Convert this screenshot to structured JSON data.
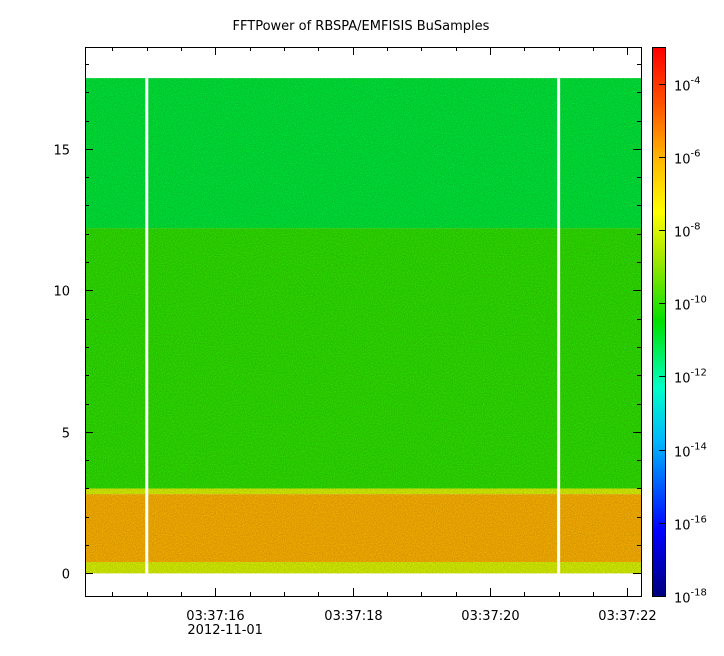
{
  "chart_data": {
    "type": "heatmap",
    "title": "FFTPower of RBSPA/EMFISIS  BuSamples",
    "x_axis": {
      "range": [
        "03:37:14.1",
        "03:37:22.2"
      ],
      "ticks": [
        "03:37:16",
        "03:37:18",
        "03:37:20",
        "03:37:22"
      ],
      "date_label": "2012-11-01"
    },
    "y_axis": {
      "range": [
        -0.8,
        18.6
      ],
      "ticks": [
        0,
        5,
        10,
        15
      ]
    },
    "colorbar": {
      "scale": "log",
      "range": [
        "1e-18",
        "1e-3"
      ],
      "tick_base": "10",
      "tick_exponents": [
        "-18",
        "-16",
        "-14",
        "-12",
        "-10",
        "-8",
        "-6",
        "-4"
      ]
    },
    "data_gaps_x": [
      "03:37:15.0",
      "03:37:21.0"
    ],
    "bands": [
      {
        "y_range": [
          0.0,
          0.4
        ],
        "level": "1e-8"
      },
      {
        "y_range": [
          0.4,
          2.8
        ],
        "level": "1e-6"
      },
      {
        "y_range": [
          2.8,
          3.0
        ],
        "level": "1e-8"
      },
      {
        "y_range": [
          3.0,
          12.2
        ],
        "level": "1e-10"
      },
      {
        "y_range": [
          12.2,
          17.5
        ],
        "level": "1e-11"
      }
    ],
    "data_y_max": 17.5
  }
}
